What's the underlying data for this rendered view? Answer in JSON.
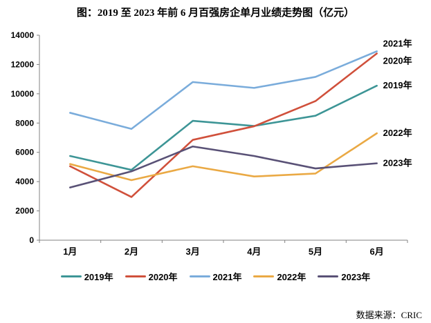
{
  "title": "图：2019 至 2023 年前 6 月百强房企单月业绩走势图（亿元）",
  "source": "数据来源：CRIC",
  "chart_data": {
    "type": "line",
    "title": "图：2019 至 2023 年前 6 月百强房企单月业绩走势图（亿元）",
    "categories": [
      "1月",
      "2月",
      "3月",
      "4月",
      "5月",
      "6月"
    ],
    "series": [
      {
        "name": "2019年",
        "color": "#3D9596",
        "values": [
          5750,
          4800,
          8150,
          7800,
          8500,
          10550
        ]
      },
      {
        "name": "2020年",
        "color": "#D0503B",
        "values": [
          5050,
          2950,
          6850,
          7780,
          9500,
          12750
        ]
      },
      {
        "name": "2021年",
        "color": "#7AACDB",
        "values": [
          8700,
          7600,
          10800,
          10400,
          11150,
          12900
        ]
      },
      {
        "name": "2022年",
        "color": "#EAA944",
        "values": [
          5200,
          4100,
          5050,
          4350,
          4550,
          7300
        ]
      },
      {
        "name": "2023年",
        "color": "#595176",
        "values": [
          3600,
          4700,
          6400,
          5750,
          4900,
          5250
        ]
      }
    ],
    "ylim": [
      0,
      14000
    ],
    "ytick_step": 2000,
    "yticks": [
      "0",
      "2000",
      "4000",
      "6000",
      "8000",
      "10000",
      "12000",
      "14000"
    ],
    "grid": false,
    "legend_position": "bottom",
    "end_labels_top_to_bottom": [
      "2021年",
      "2020年",
      "2019年",
      "2022年",
      "2023年"
    ],
    "axis_color": "#808080",
    "text_color": "#000000",
    "unit": "亿元"
  }
}
